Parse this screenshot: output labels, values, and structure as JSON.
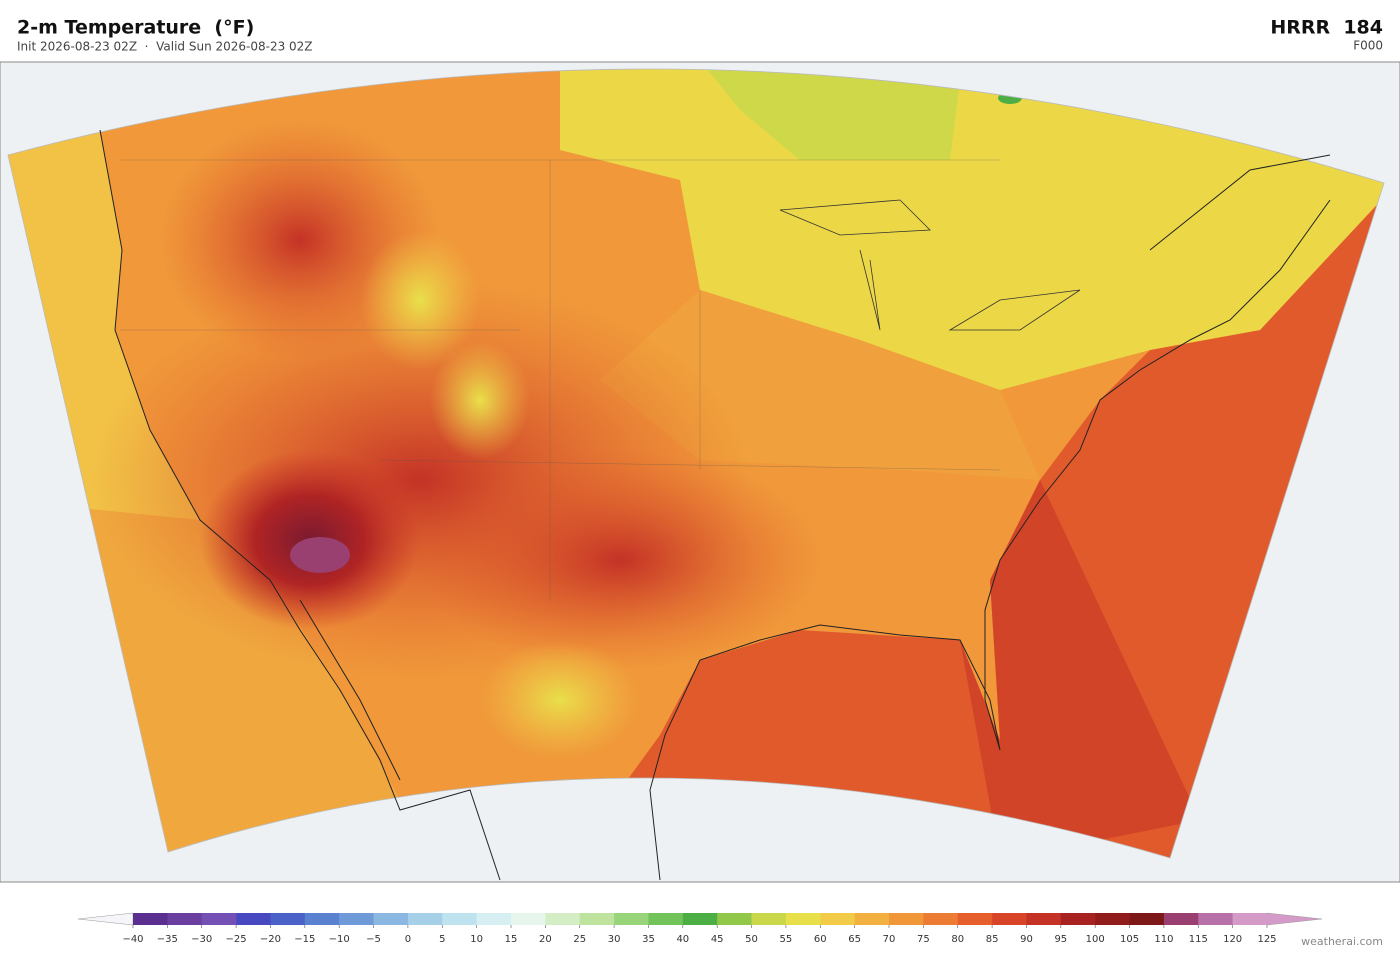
{
  "header": {
    "title": "2-m Temperature  (°F)",
    "subtitle": "Init 2026-08-23 02Z  ·  Valid Sun 2026-08-23 02Z",
    "model": "HRRR  184",
    "forecast_hour": "F000"
  },
  "colorbar": {
    "ticks": [
      {
        "value": -40,
        "label": "−40"
      },
      {
        "value": -35,
        "label": "−35"
      },
      {
        "value": -30,
        "label": "−30"
      },
      {
        "value": -25,
        "label": "−25"
      },
      {
        "value": -20,
        "label": "−20"
      },
      {
        "value": -15,
        "label": "−15"
      },
      {
        "value": -10,
        "label": "−10"
      },
      {
        "value": -5,
        "label": "−5"
      },
      0,
      5,
      10,
      15,
      20,
      25,
      30,
      35,
      40,
      45,
      50,
      55,
      60,
      65,
      70,
      75,
      80,
      85,
      90,
      95,
      100,
      105,
      110,
      115,
      120,
      125
    ],
    "colors": [
      "#5b2f8f",
      "#6b3fa0",
      "#7450b5",
      "#4848c0",
      "#4a62c8",
      "#5a80d0",
      "#6f9ad8",
      "#8ab8e0",
      "#a6d0e8",
      "#bfe2ef",
      "#d5eff3",
      "#e6f6ec",
      "#d4edc4",
      "#bde39e",
      "#98d47a",
      "#72c45a",
      "#4cae44",
      "#92c84a",
      "#c8d84a",
      "#e8e04a",
      "#f2cc48",
      "#f2b040",
      "#f09838",
      "#ec7c34",
      "#e65e2c",
      "#d84428",
      "#c43226",
      "#a82222",
      "#901c1c",
      "#7c1818",
      "#9a4070",
      "#b870a8",
      "#d49ac8"
    ],
    "under_color": "#f6f6fa",
    "over_color": "#d49ac8"
  },
  "footer": {
    "credit": "weatherai.com"
  }
}
